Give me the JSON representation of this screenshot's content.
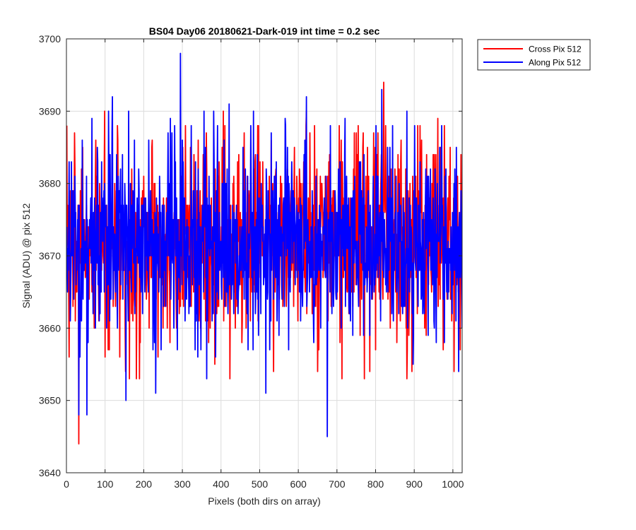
{
  "chart_data": {
    "type": "line",
    "title": "BS04 Day06 20180621-Dark-019 int time = 0.2 sec",
    "xlabel": "Pixels (both dirs on array)",
    "ylabel": "Signal (ADU) @ pix 512",
    "xlim": [
      0,
      1024
    ],
    "ylim": [
      3640,
      3700
    ],
    "xticks": [
      0,
      100,
      200,
      300,
      400,
      500,
      600,
      700,
      800,
      900,
      1000
    ],
    "yticks": [
      3640,
      3650,
      3660,
      3670,
      3680,
      3690,
      3700
    ],
    "grid": true,
    "legend_position": "outside-top-right",
    "series": [
      {
        "name": "Cross Pix 512",
        "color": "#ff0000",
        "mean": 3672,
        "std": 6.5,
        "seed": 7,
        "spikes": [
          [
            0,
            3688
          ],
          [
            6,
            3656
          ],
          [
            20,
            3687
          ],
          [
            31,
            3644
          ],
          [
            41,
            3685
          ],
          [
            98,
            3690
          ],
          [
            152,
            3654
          ],
          [
            162,
            3653
          ],
          [
            180,
            3653
          ],
          [
            188,
            3653
          ],
          [
            300,
            3685
          ],
          [
            320,
            3685
          ],
          [
            405,
            3690
          ],
          [
            422,
            3653
          ],
          [
            442,
            3683
          ],
          [
            535,
            3654
          ],
          [
            620,
            3690
          ],
          [
            712,
            3653
          ],
          [
            770,
            3653
          ],
          [
            820,
            3694
          ],
          [
            880,
            3653
          ],
          [
            960,
            3689
          ],
          [
            1002,
            3654
          ],
          [
            1020,
            3684
          ]
        ]
      },
      {
        "name": "Along Pix 512",
        "color": "#0000ff",
        "mean": 3672,
        "std": 6.5,
        "seed": 23,
        "spikes": [
          [
            6,
            3683
          ],
          [
            31,
            3648
          ],
          [
            52,
            3648
          ],
          [
            65,
            3689
          ],
          [
            108,
            3690
          ],
          [
            118,
            3692
          ],
          [
            153,
            3650
          ],
          [
            160,
            3690
          ],
          [
            230,
            3651
          ],
          [
            268,
            3689
          ],
          [
            294,
            3698
          ],
          [
            332,
            3657
          ],
          [
            355,
            3690
          ],
          [
            362,
            3653
          ],
          [
            380,
            3690
          ],
          [
            420,
            3691
          ],
          [
            483,
            3690
          ],
          [
            515,
            3651
          ],
          [
            565,
            3689
          ],
          [
            614,
            3684
          ],
          [
            620,
            3692
          ],
          [
            674,
            3645
          ],
          [
            720,
            3689
          ],
          [
            800,
            3688
          ],
          [
            815,
            3693
          ],
          [
            880,
            3690
          ],
          [
            970,
            3688
          ]
        ]
      }
    ]
  }
}
